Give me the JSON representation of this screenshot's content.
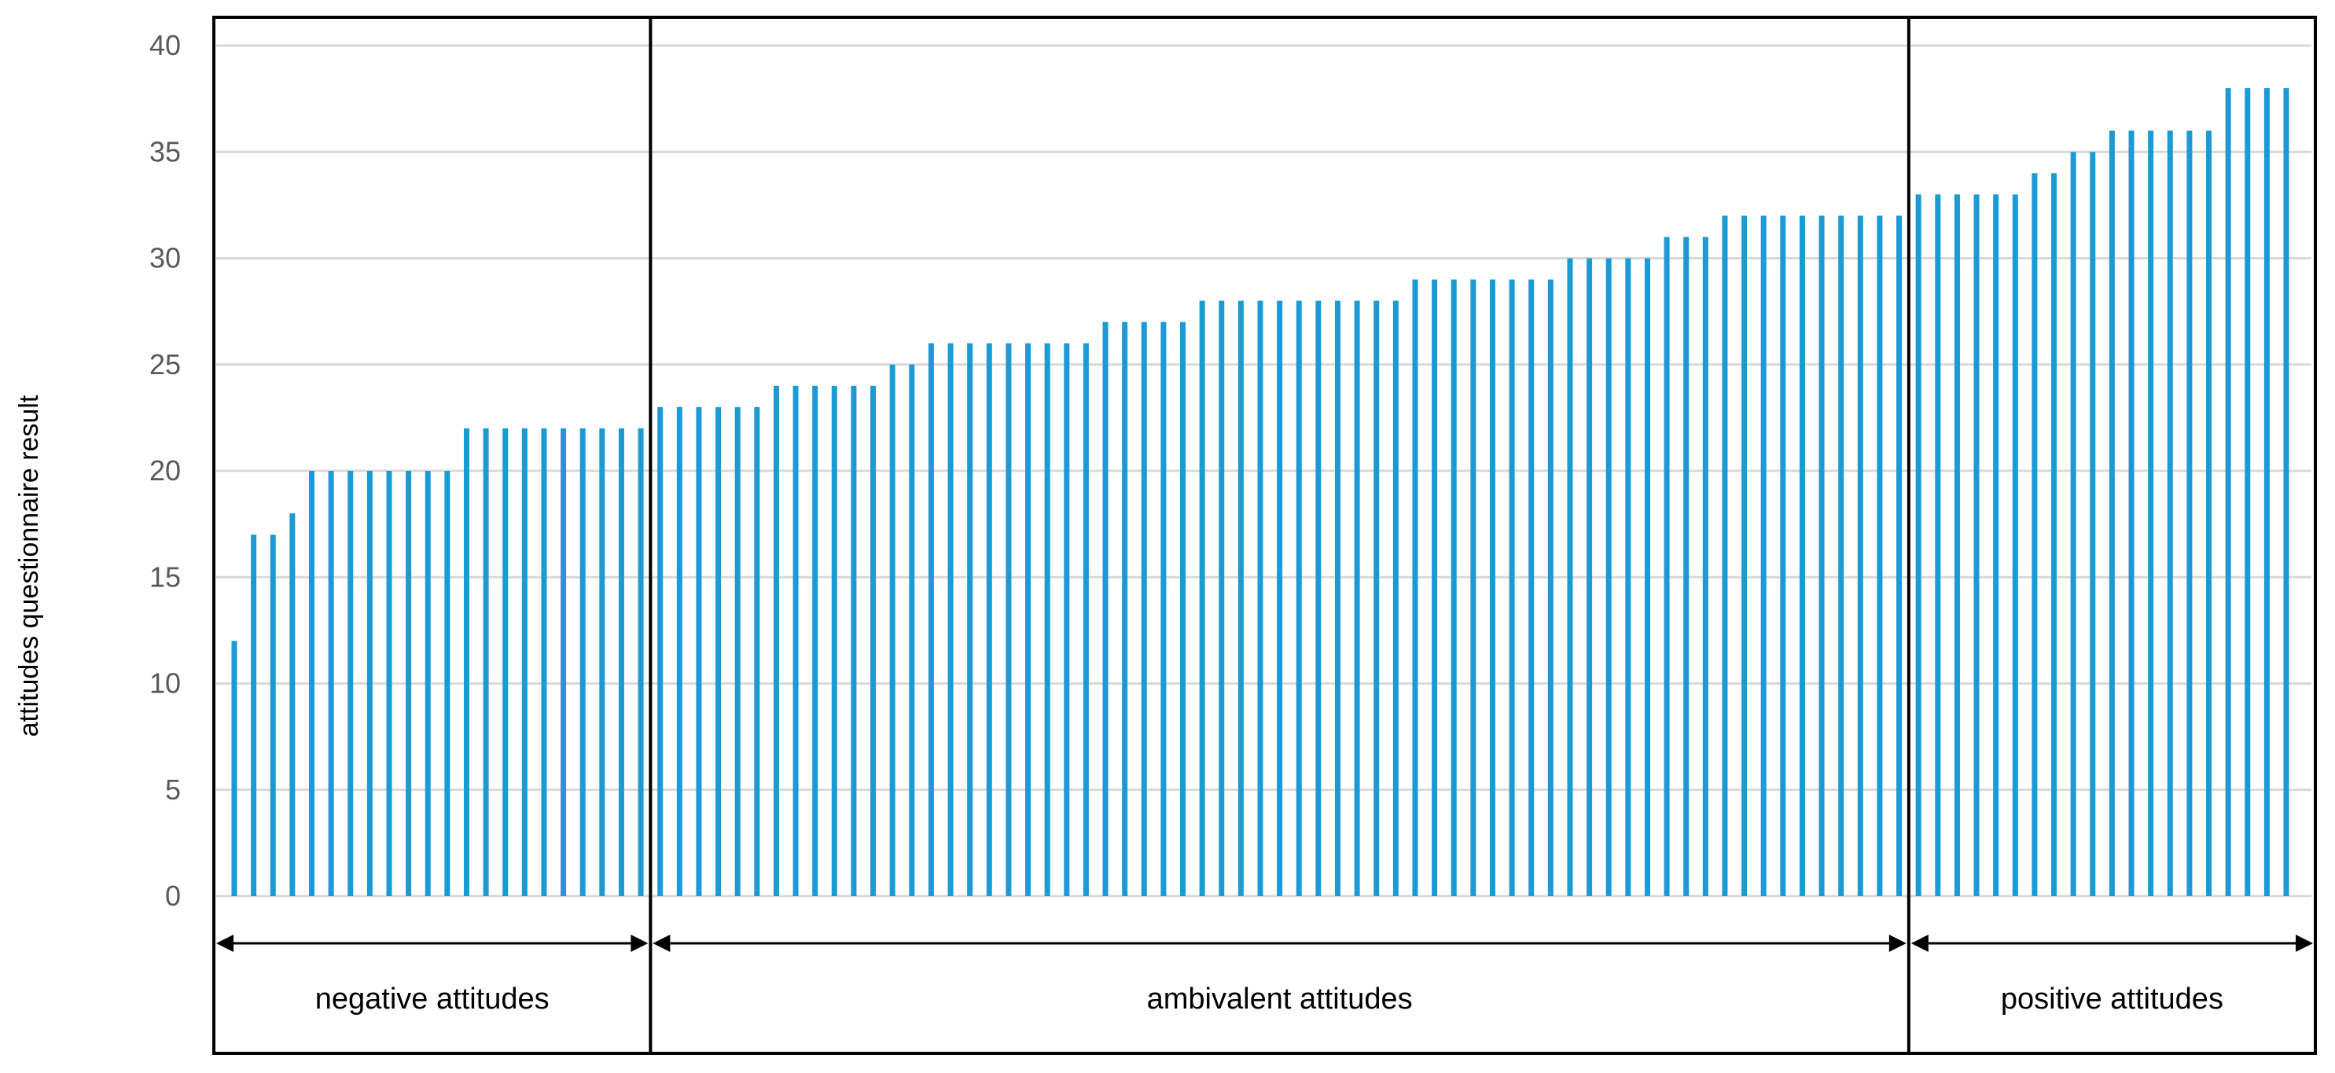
{
  "chart_data": {
    "type": "bar",
    "title": "",
    "xlabel": "",
    "ylabel": "attitudes questionnaire result",
    "ylim": [
      0,
      40
    ],
    "yticks": [
      0,
      5,
      10,
      15,
      20,
      25,
      30,
      35,
      40
    ],
    "grid": true,
    "bar_color": "#1b9ad6",
    "groups": [
      {
        "label": "negative attitudes",
        "values": [
          12,
          17,
          17,
          18,
          20,
          20,
          20,
          20,
          20,
          20,
          20,
          20,
          22,
          22,
          22,
          22,
          22,
          22,
          22,
          22,
          22,
          22
        ]
      },
      {
        "label": "ambivalent attitudes",
        "values": [
          23,
          23,
          23,
          23,
          23,
          23,
          24,
          24,
          24,
          24,
          24,
          24,
          25,
          25,
          26,
          26,
          26,
          26,
          26,
          26,
          26,
          26,
          26,
          27,
          27,
          27,
          27,
          27,
          28,
          28,
          28,
          28,
          28,
          28,
          28,
          28,
          28,
          28,
          28,
          29,
          29,
          29,
          29,
          29,
          29,
          29,
          29,
          30,
          30,
          30,
          30,
          30,
          31,
          31,
          31,
          32,
          32,
          32,
          32,
          32,
          32,
          32,
          32,
          32,
          32
        ]
      },
      {
        "label": "positive attitudes",
        "values": [
          33,
          33,
          33,
          33,
          33,
          33,
          34,
          34,
          35,
          35,
          36,
          36,
          36,
          36,
          36,
          36,
          38,
          38,
          38,
          38
        ]
      }
    ]
  }
}
